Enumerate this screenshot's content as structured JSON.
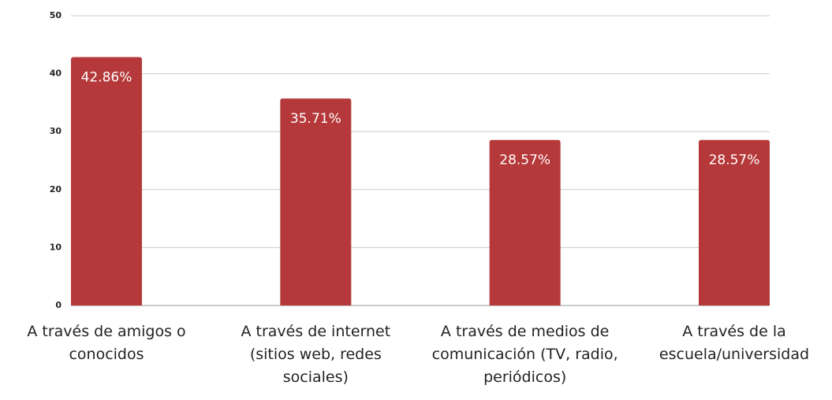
{
  "chart_data": {
    "type": "bar",
    "categories": [
      "A través de amigos o conocidos",
      "A través de internet (sitios web, redes sociales)",
      "A través de medios de comunicación (TV, radio, periódicos)",
      "A través de la escuela/universidad"
    ],
    "values": [
      42.86,
      35.71,
      28.57,
      28.57
    ],
    "value_labels": [
      "42.86%",
      "35.71%",
      "28.57%",
      "28.57%"
    ],
    "color": "#b5393a",
    "ylim": [
      0,
      50
    ],
    "yticks": [
      0,
      10,
      20,
      30,
      40,
      50
    ],
    "grid": true
  }
}
